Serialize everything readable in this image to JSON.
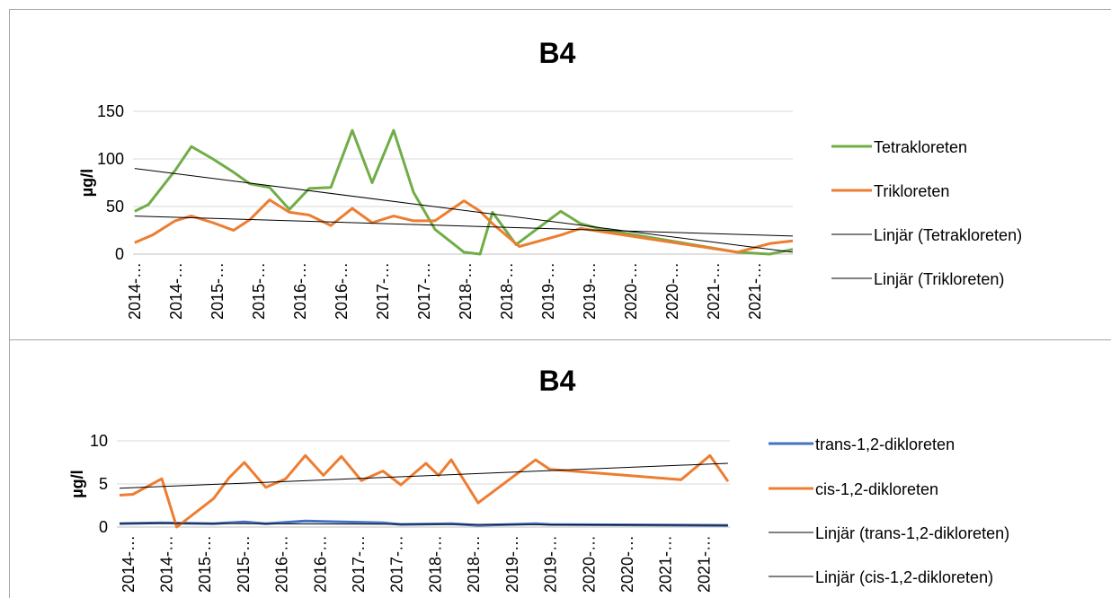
{
  "chart_data": [
    {
      "type": "line",
      "title": "B4",
      "ylabel": "µg/l",
      "ylim": [
        0,
        150
      ],
      "yticks": [
        0,
        50,
        100,
        150
      ],
      "grid": true,
      "xlim": [
        -0.04,
        15.91
      ],
      "xticks": [
        {
          "value": 0,
          "label": "2014-…"
        },
        {
          "value": 1,
          "label": "2014-…"
        },
        {
          "value": 2,
          "label": "2015-…"
        },
        {
          "value": 3,
          "label": "2015-…"
        },
        {
          "value": 4,
          "label": "2016-…"
        },
        {
          "value": 5,
          "label": "2016-…"
        },
        {
          "value": 6,
          "label": "2017-…"
        },
        {
          "value": 7,
          "label": "2017-…"
        },
        {
          "value": 8,
          "label": "2018-…"
        },
        {
          "value": 9,
          "label": "2018-…"
        },
        {
          "value": 10,
          "label": "2019-…"
        },
        {
          "value": 11,
          "label": "2019-…"
        },
        {
          "value": 12,
          "label": "2020-…"
        },
        {
          "value": 13,
          "label": "2020-…"
        },
        {
          "value": 14,
          "label": "2021-…"
        },
        {
          "value": 15,
          "label": "2021-…"
        }
      ],
      "legend": "right",
      "series": [
        {
          "name": "Tetrakloreten",
          "color": "#70ad47",
          "x": [
            0,
            0.33,
            0.98,
            1.37,
            1.89,
            2.39,
            2.78,
            3.26,
            3.74,
            4.22,
            4.74,
            5.26,
            5.74,
            6.26,
            6.74,
            7.26,
            7.96,
            8.35,
            8.65,
            9.22,
            10.3,
            10.78,
            11.3,
            14.57,
            15.35,
            15.91
          ],
          "values": [
            45,
            52,
            88,
            113,
            100,
            86,
            74,
            70,
            47,
            69,
            70,
            130,
            75,
            130,
            65,
            26,
            2,
            0,
            44,
            10,
            45,
            32,
            26,
            2,
            0,
            5
          ]
        },
        {
          "name": "Trikloreten",
          "color": "#ed7d31",
          "x": [
            0,
            0.43,
            0.98,
            1.37,
            1.89,
            2.39,
            2.78,
            3.26,
            3.74,
            4.22,
            4.74,
            5.26,
            5.74,
            6.26,
            6.74,
            7.26,
            7.96,
            8.35,
            8.65,
            9.3,
            10.3,
            10.78,
            14.57,
            15.35,
            15.91
          ],
          "values": [
            12,
            20,
            35,
            40,
            33,
            25,
            36,
            57,
            44,
            41,
            30,
            48,
            33,
            40,
            35,
            35,
            56,
            45,
            32,
            8,
            20,
            27,
            2,
            11,
            14
          ]
        },
        {
          "name": "Linjär (Tetrakloreten)",
          "color": "#000000",
          "x": [
            0,
            15.91
          ],
          "values": [
            90,
            2
          ]
        },
        {
          "name": "Linjär (Trikloreten)",
          "color": "#000000",
          "x": [
            0,
            15.91
          ],
          "values": [
            40,
            19
          ]
        }
      ]
    },
    {
      "type": "line",
      "title": "B4",
      "ylabel": "µg/l",
      "ylim": [
        0,
        10
      ],
      "yticks": [
        0,
        5,
        10
      ],
      "grid": true,
      "xlim": [
        -0.3,
        15.67
      ],
      "xticks": [
        {
          "value": 0,
          "label": "2014-…"
        },
        {
          "value": 1,
          "label": "2014-…"
        },
        {
          "value": 2,
          "label": "2015-…"
        },
        {
          "value": 3,
          "label": "2015-…"
        },
        {
          "value": 4,
          "label": "2016-…"
        },
        {
          "value": 5,
          "label": "2016-…"
        },
        {
          "value": 6,
          "label": "2017-…"
        },
        {
          "value": 7,
          "label": "2017-…"
        },
        {
          "value": 8,
          "label": "2018-…"
        },
        {
          "value": 9,
          "label": "2018-…"
        },
        {
          "value": 10,
          "label": "2019-…"
        },
        {
          "value": 11,
          "label": "2019-…"
        },
        {
          "value": 12,
          "label": "2020-…"
        },
        {
          "value": 13,
          "label": "2020-…"
        },
        {
          "value": 14,
          "label": "2021-…"
        },
        {
          "value": 15,
          "label": "2021-…"
        }
      ],
      "legend": "right",
      "series": [
        {
          "name": "trans-1,2-dikloreten",
          "color": "#4472c4",
          "x": [
            -0.23,
            0.87,
            2.22,
            3.02,
            3.58,
            4.61,
            5.55,
            6.63,
            7.1,
            8.41,
            9.11,
            10.61,
            10.98,
            15.62
          ],
          "values": [
            0.4,
            0.5,
            0.4,
            0.6,
            0.4,
            0.7,
            0.6,
            0.5,
            0.3,
            0.4,
            0.2,
            0.4,
            0.3,
            0.2
          ]
        },
        {
          "name": "cis-1,2-dikloreten",
          "color": "#ed7d31",
          "x": [
            -0.23,
            0.12,
            0.87,
            1.26,
            2.22,
            2.62,
            3.02,
            3.58,
            4.1,
            4.61,
            5.08,
            5.55,
            6.07,
            6.63,
            7.1,
            7.75,
            8.08,
            8.41,
            9.11,
            10.61,
            10.98,
            14.4,
            15.15,
            15.62
          ],
          "values": [
            3.7,
            3.8,
            5.6,
            0,
            3.3,
            5.7,
            7.5,
            4.6,
            5.6,
            8.3,
            6,
            8.2,
            5.4,
            6.5,
            4.9,
            7.4,
            6,
            7.8,
            2.8,
            7.8,
            6.7,
            5.5,
            8.3,
            5.3
          ]
        },
        {
          "name": "Linjär (trans-1,2-dikloreten)",
          "color": "#000000",
          "x": [
            -0.23,
            15.62
          ],
          "values": [
            0.45,
            0.2
          ]
        },
        {
          "name": "Linjär (cis-1,2-dikloreten)",
          "color": "#000000",
          "x": [
            -0.23,
            15.62
          ],
          "values": [
            4.5,
            7.4
          ]
        }
      ]
    }
  ]
}
